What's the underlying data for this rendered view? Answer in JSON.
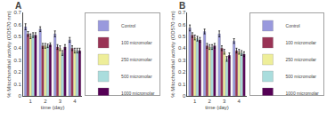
{
  "chart_data": [
    {
      "type": "bar",
      "title": "A",
      "xlabel": "time (day)",
      "ylabel": "% Mitochondrial activity (OD570 nm)",
      "categories": [
        1,
        2,
        3,
        4
      ],
      "series": [
        {
          "name": "Control",
          "color": "#9999dd",
          "values": [
            0.58,
            0.56,
            0.52,
            0.47
          ],
          "errors": [
            0.025,
            0.02,
            0.025,
            0.02
          ]
        },
        {
          "name": "100 micromolar",
          "color": "#993355",
          "values": [
            0.52,
            0.42,
            0.41,
            0.4
          ],
          "errors": [
            0.02,
            0.02,
            0.02,
            0.02
          ]
        },
        {
          "name": "250 micromolar",
          "color": "#eeee99",
          "values": [
            0.5,
            0.42,
            0.4,
            0.38
          ],
          "errors": [
            0.02,
            0.02,
            0.02,
            0.02
          ]
        },
        {
          "name": "500 micromolar",
          "color": "#aadddd",
          "values": [
            0.51,
            0.42,
            0.36,
            0.38
          ],
          "errors": [
            0.02,
            0.015,
            0.02,
            0.02
          ]
        },
        {
          "name": "1000 micromolar",
          "color": "#550055",
          "values": [
            0.51,
            0.43,
            0.41,
            0.38
          ],
          "errors": [
            0.02,
            0.015,
            0.02,
            0.02
          ]
        }
      ],
      "ylim": [
        0.0,
        0.7
      ],
      "yticks": [
        0,
        0.1,
        0.2,
        0.3,
        0.4,
        0.5,
        0.6,
        0.7
      ],
      "grid": false,
      "legend": "upper right"
    },
    {
      "type": "bar",
      "title": "B",
      "xlabel": "time (day)",
      "ylabel": "% Mitochondrial activity (OD570 nm)",
      "categories": [
        1,
        2,
        3,
        4
      ],
      "series": [
        {
          "name": "Control",
          "color": "#9999dd",
          "values": [
            0.57,
            0.54,
            0.52,
            0.46
          ],
          "errors": [
            0.025,
            0.02,
            0.025,
            0.02
          ]
        },
        {
          "name": "100 micromolar",
          "color": "#993355",
          "values": [
            0.51,
            0.42,
            0.4,
            0.38
          ],
          "errors": [
            0.02,
            0.02,
            0.02,
            0.02
          ]
        },
        {
          "name": "250 micromolar",
          "color": "#eeee99",
          "values": [
            0.49,
            0.41,
            0.37,
            0.37
          ],
          "errors": [
            0.02,
            0.02,
            0.02,
            0.02
          ]
        },
        {
          "name": "500 micromolar",
          "color": "#aadddd",
          "values": [
            0.48,
            0.41,
            0.31,
            0.36
          ],
          "errors": [
            0.02,
            0.02,
            0.02,
            0.02
          ]
        },
        {
          "name": "1000 micromolar",
          "color": "#550055",
          "values": [
            0.47,
            0.42,
            0.34,
            0.35
          ],
          "errors": [
            0.02,
            0.02,
            0.02,
            0.02
          ]
        }
      ],
      "ylim": [
        0.0,
        0.7
      ],
      "yticks": [
        0,
        0.1,
        0.2,
        0.3,
        0.4,
        0.5,
        0.6,
        0.7
      ],
      "grid": false,
      "legend": "upper right"
    }
  ]
}
